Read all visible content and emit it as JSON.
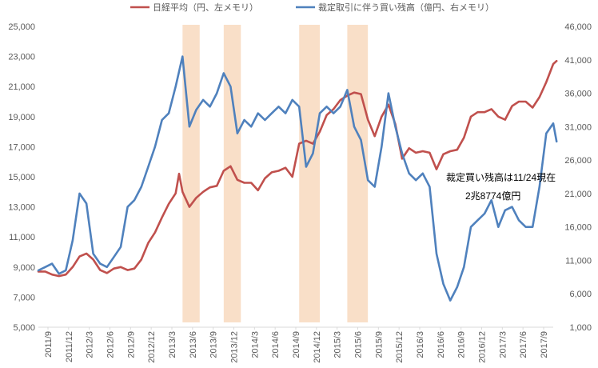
{
  "chart_data": {
    "type": "line",
    "title": "",
    "xlabel": "",
    "ylabel": "",
    "x_tick_labels": [
      "2011/9",
      "2011/12",
      "2012/3",
      "2012/6",
      "2012/9",
      "2012/12",
      "2013/3",
      "2013/6",
      "2013/9",
      "2013/12",
      "2014/3",
      "2014/6",
      "2014/9",
      "2014/12",
      "2015/3",
      "2015/6",
      "2015/9",
      "2015/12",
      "2016/3",
      "2016/6",
      "2016/9",
      "2016/12",
      "2017/3",
      "2017/6",
      "2017/9"
    ],
    "left_axis": {
      "ylim": [
        5000,
        25000
      ],
      "ticks": [
        "5,000",
        "7,000",
        "9,000",
        "11,000",
        "13,000",
        "15,000",
        "17,000",
        "19,000",
        "21,000",
        "23,000",
        "25,000"
      ]
    },
    "right_axis": {
      "ylim": [
        1000,
        46000
      ],
      "ticks": [
        "1,000",
        "6,000",
        "11,000",
        "16,000",
        "21,000",
        "26,000",
        "31,000",
        "36,000",
        "41,000",
        "46,000"
      ]
    },
    "grid": false,
    "legend_position": "top",
    "highlight_periods": [
      {
        "start": 2013.417,
        "end": 2013.625
      },
      {
        "start": 2013.917,
        "end": 2014.125
      },
      {
        "start": 2014.833,
        "end": 2015.083
      },
      {
        "start": 2015.417,
        "end": 2015.667
      }
    ],
    "annotation": {
      "line1": "裁定買い残高は11/24現在",
      "line2": "2兆8774億円",
      "x": 2016.5,
      "y_left": 15000
    },
    "series": [
      {
        "name": "日経平均（円、左メモリ）",
        "axis": "left",
        "color": "#C0504D",
        "points": [
          [
            2011.667,
            8700
          ],
          [
            2011.75,
            8700
          ],
          [
            2011.833,
            8500
          ],
          [
            2011.917,
            8400
          ],
          [
            2012.0,
            8500
          ],
          [
            2012.083,
            9000
          ],
          [
            2012.167,
            9700
          ],
          [
            2012.25,
            9900
          ],
          [
            2012.333,
            9500
          ],
          [
            2012.417,
            8800
          ],
          [
            2012.5,
            8600
          ],
          [
            2012.583,
            8900
          ],
          [
            2012.667,
            9000
          ],
          [
            2012.75,
            8800
          ],
          [
            2012.833,
            8900
          ],
          [
            2012.917,
            9500
          ],
          [
            2013.0,
            10600
          ],
          [
            2013.083,
            11300
          ],
          [
            2013.167,
            12300
          ],
          [
            2013.25,
            13200
          ],
          [
            2013.333,
            13900
          ],
          [
            2013.375,
            15200
          ],
          [
            2013.417,
            14000
          ],
          [
            2013.5,
            13000
          ],
          [
            2013.583,
            13600
          ],
          [
            2013.667,
            14000
          ],
          [
            2013.75,
            14300
          ],
          [
            2013.833,
            14400
          ],
          [
            2013.917,
            15400
          ],
          [
            2014.0,
            15700
          ],
          [
            2014.083,
            14800
          ],
          [
            2014.167,
            14600
          ],
          [
            2014.25,
            14600
          ],
          [
            2014.333,
            14100
          ],
          [
            2014.417,
            14900
          ],
          [
            2014.5,
            15300
          ],
          [
            2014.583,
            15400
          ],
          [
            2014.667,
            15600
          ],
          [
            2014.75,
            15000
          ],
          [
            2014.833,
            17200
          ],
          [
            2014.917,
            17400
          ],
          [
            2015.0,
            17200
          ],
          [
            2015.083,
            18000
          ],
          [
            2015.167,
            19100
          ],
          [
            2015.25,
            19500
          ],
          [
            2015.333,
            20100
          ],
          [
            2015.417,
            20400
          ],
          [
            2015.5,
            20600
          ],
          [
            2015.583,
            20500
          ],
          [
            2015.667,
            18800
          ],
          [
            2015.75,
            17700
          ],
          [
            2015.833,
            19000
          ],
          [
            2015.917,
            19800
          ],
          [
            2016.0,
            18500
          ],
          [
            2016.083,
            16200
          ],
          [
            2016.167,
            16900
          ],
          [
            2016.25,
            16600
          ],
          [
            2016.333,
            16700
          ],
          [
            2016.417,
            16600
          ],
          [
            2016.5,
            15500
          ],
          [
            2016.583,
            16500
          ],
          [
            2016.667,
            16700
          ],
          [
            2016.75,
            16800
          ],
          [
            2016.833,
            17600
          ],
          [
            2016.917,
            19000
          ],
          [
            2017.0,
            19300
          ],
          [
            2017.083,
            19300
          ],
          [
            2017.167,
            19500
          ],
          [
            2017.25,
            19000
          ],
          [
            2017.333,
            18800
          ],
          [
            2017.417,
            19700
          ],
          [
            2017.5,
            20000
          ],
          [
            2017.583,
            20000
          ],
          [
            2017.667,
            19600
          ],
          [
            2017.75,
            20300
          ],
          [
            2017.833,
            21300
          ],
          [
            2017.917,
            22500
          ],
          [
            2017.958,
            22700
          ]
        ]
      },
      {
        "name": "裁定取引に伴う買い残高（億円、右メモリ）",
        "axis": "right",
        "color": "#4F81BD",
        "points": [
          [
            2011.667,
            9500
          ],
          [
            2011.75,
            10000
          ],
          [
            2011.833,
            10500
          ],
          [
            2011.917,
            9000
          ],
          [
            2012.0,
            9500
          ],
          [
            2012.083,
            14000
          ],
          [
            2012.167,
            21000
          ],
          [
            2012.25,
            19500
          ],
          [
            2012.333,
            12000
          ],
          [
            2012.417,
            10500
          ],
          [
            2012.5,
            10000
          ],
          [
            2012.583,
            11500
          ],
          [
            2012.667,
            13000
          ],
          [
            2012.75,
            19000
          ],
          [
            2012.833,
            20000
          ],
          [
            2012.917,
            22000
          ],
          [
            2013.0,
            25000
          ],
          [
            2013.083,
            28000
          ],
          [
            2013.167,
            32000
          ],
          [
            2013.25,
            33000
          ],
          [
            2013.333,
            37000
          ],
          [
            2013.417,
            41500
          ],
          [
            2013.5,
            31000
          ],
          [
            2013.583,
            33500
          ],
          [
            2013.667,
            35000
          ],
          [
            2013.75,
            34000
          ],
          [
            2013.833,
            36000
          ],
          [
            2013.917,
            39000
          ],
          [
            2014.0,
            37000
          ],
          [
            2014.083,
            30000
          ],
          [
            2014.167,
            32000
          ],
          [
            2014.25,
            31000
          ],
          [
            2014.333,
            33000
          ],
          [
            2014.417,
            32000
          ],
          [
            2014.5,
            33000
          ],
          [
            2014.583,
            34000
          ],
          [
            2014.667,
            33000
          ],
          [
            2014.75,
            35000
          ],
          [
            2014.833,
            34000
          ],
          [
            2014.917,
            25000
          ],
          [
            2015.0,
            27000
          ],
          [
            2015.083,
            33000
          ],
          [
            2015.167,
            34000
          ],
          [
            2015.25,
            33000
          ],
          [
            2015.333,
            34000
          ],
          [
            2015.417,
            36500
          ],
          [
            2015.5,
            31000
          ],
          [
            2015.583,
            29000
          ],
          [
            2015.667,
            23000
          ],
          [
            2015.75,
            22000
          ],
          [
            2015.833,
            28000
          ],
          [
            2015.917,
            36000
          ],
          [
            2016.0,
            31000
          ],
          [
            2016.083,
            27000
          ],
          [
            2016.167,
            24000
          ],
          [
            2016.25,
            23000
          ],
          [
            2016.333,
            24000
          ],
          [
            2016.417,
            22000
          ],
          [
            2016.5,
            12000
          ],
          [
            2016.583,
            7500
          ],
          [
            2016.667,
            5000
          ],
          [
            2016.75,
            7000
          ],
          [
            2016.833,
            10000
          ],
          [
            2016.917,
            16000
          ],
          [
            2017.0,
            17000
          ],
          [
            2017.083,
            18000
          ],
          [
            2017.167,
            20000
          ],
          [
            2017.25,
            16000
          ],
          [
            2017.333,
            18500
          ],
          [
            2017.417,
            19000
          ],
          [
            2017.5,
            17000
          ],
          [
            2017.583,
            16000
          ],
          [
            2017.667,
            16000
          ],
          [
            2017.75,
            22000
          ],
          [
            2017.833,
            30000
          ],
          [
            2017.917,
            31500
          ],
          [
            2017.958,
            28774
          ]
        ]
      }
    ]
  }
}
